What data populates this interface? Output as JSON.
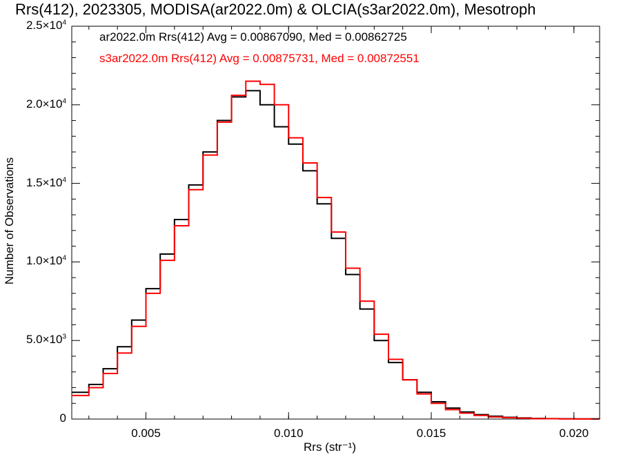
{
  "chart_data": {
    "type": "line",
    "title": "Rrs(412), 2023305, MODISA(ar2022.0m) & OLCIA(s3ar2022.0m), Mesotroph",
    "xlabel": "Rrs (str⁻¹)",
    "ylabel": "Number of Observations",
    "xlim": [
      0.0024,
      0.0209
    ],
    "ylim": [
      0,
      25000
    ],
    "x_ticks": [
      "0.005",
      "0.010",
      "0.015",
      "0.020"
    ],
    "x_tick_values": [
      0.005,
      0.01,
      0.015,
      0.02
    ],
    "y_ticks": [
      {
        "value": 0,
        "mant": "0",
        "exp": ""
      },
      {
        "value": 5000,
        "mant": "5.0×10",
        "exp": "3"
      },
      {
        "value": 10000,
        "mant": "1.0×10",
        "exp": "4"
      },
      {
        "value": 15000,
        "mant": "1.5×10",
        "exp": "4"
      },
      {
        "value": 20000,
        "mant": "2.0×10",
        "exp": "4"
      },
      {
        "value": 25000,
        "mant": "2.5×10",
        "exp": "4"
      }
    ],
    "x": [
      0.0024,
      0.003,
      0.0035,
      0.004,
      0.0045,
      0.005,
      0.0055,
      0.006,
      0.0065,
      0.007,
      0.0075,
      0.008,
      0.0085,
      0.009,
      0.0095,
      0.01,
      0.0105,
      0.011,
      0.0115,
      0.012,
      0.0125,
      0.013,
      0.0135,
      0.014,
      0.0145,
      0.015,
      0.0155,
      0.016,
      0.0165,
      0.017,
      0.0175,
      0.018,
      0.0185,
      0.019,
      0.0195,
      0.02,
      0.0209
    ],
    "series": [
      {
        "name": "ar2022.0m",
        "legend": "ar2022.0m Rrs(412) Avg = 0.00867090, Med = 0.00862725",
        "color": "#000000",
        "values": [
          1700,
          2200,
          3200,
          4600,
          6300,
          8300,
          10500,
          12700,
          14900,
          17000,
          19000,
          20500,
          20900,
          20000,
          18600,
          17500,
          15800,
          13700,
          11500,
          9200,
          7000,
          5000,
          3600,
          2500,
          1700,
          1100,
          700,
          450,
          280,
          180,
          110,
          70,
          40,
          25,
          15,
          10,
          5
        ]
      },
      {
        "name": "s3ar2022.0m",
        "legend": "s3ar2022.0m Rrs(412) Avg = 0.00875731, Med = 0.00872551",
        "color": "#ff0000",
        "values": [
          1500,
          2000,
          2900,
          4200,
          5900,
          8000,
          10100,
          12300,
          14600,
          16800,
          18900,
          20600,
          21500,
          21300,
          20000,
          17900,
          16300,
          14100,
          11900,
          9600,
          7500,
          5400,
          3800,
          2500,
          1600,
          1000,
          600,
          380,
          230,
          140,
          90,
          55,
          30,
          20,
          12,
          8,
          4
        ]
      }
    ],
    "grid": false
  }
}
